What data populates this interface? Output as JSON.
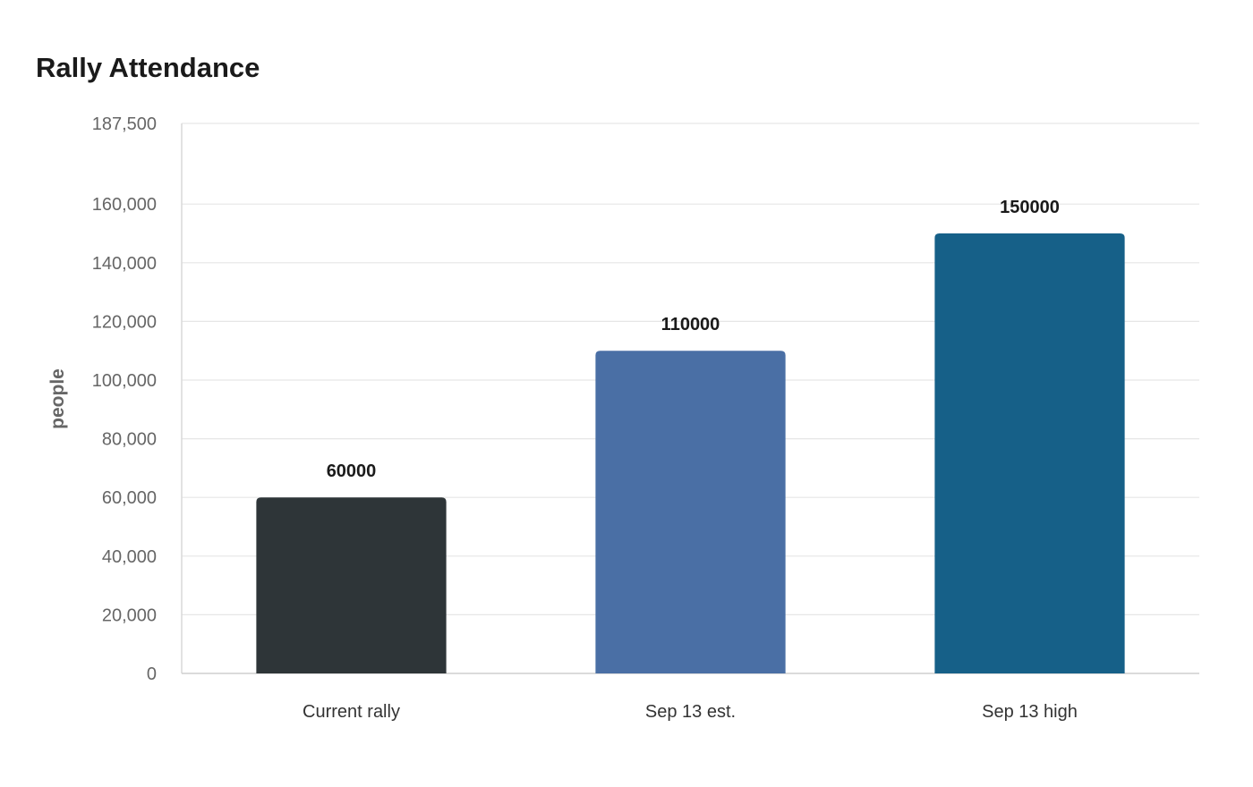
{
  "chart_data": {
    "type": "bar",
    "title": "Rally Attendance",
    "xlabel": "",
    "ylabel": "people",
    "categories": [
      "Current rally",
      "Sep 13 est.",
      "Sep 13 high"
    ],
    "values": [
      60000,
      110000,
      150000
    ],
    "colors": [
      "#2e3538",
      "#4a6fa5",
      "#166088"
    ],
    "ylim": [
      0,
      187500
    ],
    "yticks": [
      0,
      20000,
      40000,
      60000,
      80000,
      100000,
      120000,
      140000,
      160000,
      187500
    ],
    "ytick_labels": [
      "0",
      "20,000",
      "40,000",
      "60,000",
      "80,000",
      "100,000",
      "120,000",
      "140,000",
      "160,000",
      "187,500"
    ],
    "grid": true,
    "legend": "none"
  }
}
